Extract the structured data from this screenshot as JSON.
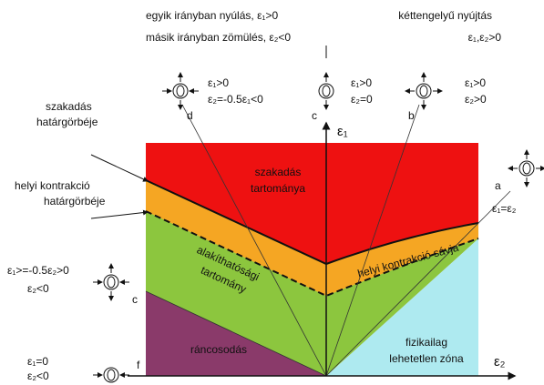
{
  "header": {
    "left_line1": "egyik irányban nyúlás, ε₁>0",
    "left_line2": "másik irányban zömülés, ε₂<0",
    "right_line1": "kéttengelyű nyújtás",
    "right_line2": "ε₁,ε₂>0"
  },
  "axes": {
    "y": "ε₁",
    "x": "ε₂"
  },
  "strain_states": [
    {
      "label": "d",
      "line1": "ε₁>0",
      "line2": "ε₂=-0.5ε₁<0"
    },
    {
      "label": "c",
      "line1": "ε₁>0",
      "line2": "ε₂=0"
    },
    {
      "label": "b",
      "line1": "ε₁>0",
      "line2": "ε₂>0"
    },
    {
      "label": "a",
      "line1": "ε₁=ε₂"
    },
    {
      "label": "c",
      "line1": "ε₁>=-0.5ε₂>0",
      "line2": "ε₂<0"
    },
    {
      "label": "f",
      "line1": "ε₁=0",
      "line2": "ε₂<0"
    }
  ],
  "curves": {
    "fracture_line1": "szakadás",
    "fracture_line2": "határgörbéje",
    "necking_line1": "helyi kontrakció",
    "necking_line2": "határgörbéje"
  },
  "regions": {
    "fracture_line1": "szakadás",
    "fracture_line2": "tartománya",
    "necking_band": "helyi kontrakció sávja",
    "formable_line1": "alakíthatósági",
    "formable_line2": "tartomány",
    "wrinkling": "ráncosodás",
    "impossible_line1": "fizikailag",
    "impossible_line2": "lehetetlen zóna"
  }
}
